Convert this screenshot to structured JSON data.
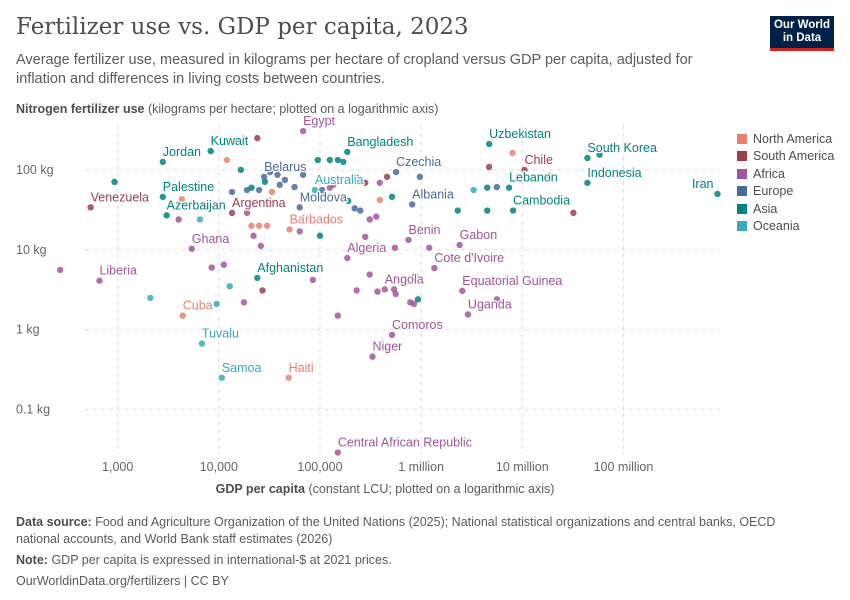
{
  "header": {
    "title": "Fertilizer use vs. GDP per capita, 2023",
    "subtitle": "Average fertilizer use, measured in kilograms per hectare of cropland versus GDP per capita, adjusted for inflation and differences in living costs between countries.",
    "logo": "Our World in Data"
  },
  "footer": {
    "source_label": "Data source:",
    "source": "Food and Agriculture Organization of the United Nations (2025); National statistical organizations and central banks, OECD national accounts, and World Bank staff estimates (2026)",
    "note_label": "Note:",
    "note": "GDP per capita is expressed in international-$ at 2021 prices.",
    "link": "OurWorldinData.org/fertilizers | CC BY"
  },
  "chart_data": {
    "type": "scatter",
    "title": "Fertilizer use vs. GDP per capita, 2023",
    "ylabel_bold": "Nitrogen fertilizer use",
    "ylabel_rest": " (kilograms per hectare; plotted on a logarithmic axis)",
    "xlabel_bold": "GDP per capita",
    "xlabel_rest": " (constant LCU; plotted on a logarithmic axis)",
    "xscale": "log",
    "yscale": "log",
    "xlim": [
      240,
      900000000
    ],
    "ylim": [
      0.027,
      365
    ],
    "grid": true,
    "legend": "right",
    "xticks": [
      {
        "v": 1000,
        "label": "1,000"
      },
      {
        "v": 10000,
        "label": "10,000"
      },
      {
        "v": 100000,
        "label": "100,000"
      },
      {
        "v": 1000000,
        "label": "1 million"
      },
      {
        "v": 10000000,
        "label": "10 million"
      },
      {
        "v": 100000000,
        "label": "100 million"
      }
    ],
    "yticks": [
      {
        "v": 100,
        "label": "100 kg"
      },
      {
        "v": 10,
        "label": "10 kg"
      },
      {
        "v": 1,
        "label": "1 kg"
      },
      {
        "v": 0.1,
        "label": "0.1 kg"
      }
    ],
    "regions": [
      {
        "name": "North America",
        "color": "#e8826f"
      },
      {
        "name": "South America",
        "color": "#9b3f4d"
      },
      {
        "name": "Africa",
        "color": "#a2559c"
      },
      {
        "name": "Europe",
        "color": "#4c6a9c"
      },
      {
        "name": "Asia",
        "color": "#00847e"
      },
      {
        "name": "Oceania",
        "color": "#38aaba"
      }
    ],
    "points": [
      {
        "label": "Kuwait",
        "x": 8300,
        "y": 172,
        "r": "Asia"
      },
      {
        "label": "Jordan",
        "x": 2790,
        "y": 126,
        "r": "Asia"
      },
      {
        "label": "Palestine",
        "x": 2790,
        "y": 46,
        "r": "Asia"
      },
      {
        "label": "Venezuela",
        "x": 540,
        "y": 34,
        "r": "South America"
      },
      {
        "label": "Azerbaijan",
        "x": 3050,
        "y": 27,
        "r": "Asia"
      },
      {
        "label": "Belarus",
        "x": 28000,
        "y": 82,
        "r": "Europe"
      },
      {
        "label": "Egypt",
        "x": 68000,
        "y": 306,
        "r": "Africa"
      },
      {
        "label": "Bangladesh",
        "x": 186000,
        "y": 168,
        "r": "Asia"
      },
      {
        "label": "Australia",
        "x": 89000,
        "y": 56,
        "r": "Oceania"
      },
      {
        "label": "Argentina",
        "x": 13500,
        "y": 29,
        "r": "South America"
      },
      {
        "label": "Moldova",
        "x": 63000,
        "y": 34,
        "r": "Europe"
      },
      {
        "label": "Barbados",
        "x": 50000,
        "y": 18,
        "r": "North America"
      },
      {
        "label": "Czechia",
        "x": 565000,
        "y": 94,
        "r": "Europe"
      },
      {
        "label": "Albania",
        "x": 815000,
        "y": 37,
        "r": "Europe"
      },
      {
        "label": "Uzbekistan",
        "x": 4700000,
        "y": 211,
        "r": "Asia"
      },
      {
        "label": "Chile",
        "x": 10500000,
        "y": 100,
        "r": "South America"
      },
      {
        "label": "South Korea",
        "x": 44000000,
        "y": 141,
        "r": "Asia"
      },
      {
        "label": "Indonesia",
        "x": 44000000,
        "y": 69,
        "r": "Asia"
      },
      {
        "label": "Iran",
        "x": 850000000,
        "y": 50,
        "r": "Asia"
      },
      {
        "label": "Lebanon",
        "x": 7400000,
        "y": 60,
        "r": "Asia"
      },
      {
        "label": "Cambodia",
        "x": 8100000,
        "y": 31,
        "r": "Asia"
      },
      {
        "label": "Benin",
        "x": 750000,
        "y": 13.3,
        "r": "Africa"
      },
      {
        "label": "Gabon",
        "x": 2400000,
        "y": 11.5,
        "r": "Africa"
      },
      {
        "label": "Algeria",
        "x": 186000,
        "y": 7.9,
        "r": "Africa"
      },
      {
        "label": "Cote d'Ivoire",
        "x": 1350000,
        "y": 5.9,
        "r": "Africa"
      },
      {
        "label": "Angola",
        "x": 437000,
        "y": 3.2,
        "r": "Africa"
      },
      {
        "label": "Equatorial Guinea",
        "x": 2550000,
        "y": 3.06,
        "r": "Africa"
      },
      {
        "label": "Uganda",
        "x": 2900000,
        "y": 1.55,
        "r": "Africa"
      },
      {
        "label": "Comoros",
        "x": 515000,
        "y": 0.86,
        "r": "Africa"
      },
      {
        "label": "Niger",
        "x": 330000,
        "y": 0.46,
        "r": "Africa"
      },
      {
        "label": "Central African Republic",
        "x": 150000,
        "y": 0.029,
        "r": "Africa"
      },
      {
        "label": "Haiti",
        "x": 49000,
        "y": 0.25,
        "r": "North America"
      },
      {
        "label": "Samoa",
        "x": 10700,
        "y": 0.25,
        "r": "Oceania"
      },
      {
        "label": "Tuvalu",
        "x": 6800,
        "y": 0.67,
        "r": "Oceania"
      },
      {
        "label": "Cuba",
        "x": 4400,
        "y": 1.5,
        "r": "North America"
      },
      {
        "label": "Liberia",
        "x": 660,
        "y": 4.1,
        "r": "Africa"
      },
      {
        "label": "Ghana",
        "x": 5400,
        "y": 10.3,
        "r": "Africa"
      },
      {
        "label": "Afghanistan",
        "x": 24000,
        "y": 4.45,
        "r": "Asia"
      },
      {
        "x": 270,
        "y": 5.6,
        "r": "Africa"
      },
      {
        "x": 930,
        "y": 71,
        "r": "Asia"
      },
      {
        "x": 2100,
        "y": 2.5,
        "r": "Oceania"
      },
      {
        "x": 4000,
        "y": 24,
        "r": "Africa"
      },
      {
        "x": 4300,
        "y": 43,
        "r": "North America"
      },
      {
        "x": 6500,
        "y": 24,
        "r": "Oceania"
      },
      {
        "x": 8500,
        "y": 6,
        "r": "Africa"
      },
      {
        "x": 11200,
        "y": 6.5,
        "r": "Africa"
      },
      {
        "x": 12800,
        "y": 3.5,
        "r": "Oceania"
      },
      {
        "x": 9500,
        "y": 2.1,
        "r": "Oceania"
      },
      {
        "x": 17700,
        "y": 2.2,
        "r": "Africa"
      },
      {
        "x": 27000,
        "y": 3.1,
        "r": "South America"
      },
      {
        "x": 26000,
        "y": 11.2,
        "r": "Africa"
      },
      {
        "x": 22000,
        "y": 15,
        "r": "Africa"
      },
      {
        "x": 19000,
        "y": 29,
        "r": "Africa"
      },
      {
        "x": 21000,
        "y": 20,
        "r": "North America"
      },
      {
        "x": 25000,
        "y": 20,
        "r": "North America"
      },
      {
        "x": 30000,
        "y": 20,
        "r": "North America"
      },
      {
        "x": 24000,
        "y": 250,
        "r": "South America"
      },
      {
        "x": 12000,
        "y": 133,
        "r": "North America"
      },
      {
        "x": 16500,
        "y": 100,
        "r": "Asia"
      },
      {
        "x": 21000,
        "y": 60,
        "r": "Asia"
      },
      {
        "x": 25000,
        "y": 56,
        "r": "Europe"
      },
      {
        "x": 13500,
        "y": 53,
        "r": "Europe"
      },
      {
        "x": 19000,
        "y": 56,
        "r": "Europe"
      },
      {
        "x": 33500,
        "y": 53,
        "r": "North America"
      },
      {
        "x": 28500,
        "y": 71,
        "r": "Asia"
      },
      {
        "x": 40000,
        "y": 65,
        "r": "Europe"
      },
      {
        "x": 45000,
        "y": 75,
        "r": "Europe"
      },
      {
        "x": 56000,
        "y": 61,
        "r": "Europe"
      },
      {
        "x": 38000,
        "y": 87,
        "r": "Europe"
      },
      {
        "x": 32000,
        "y": 94,
        "r": "Europe"
      },
      {
        "x": 68000,
        "y": 87,
        "r": "Europe"
      },
      {
        "x": 105000,
        "y": 56,
        "r": "Europe"
      },
      {
        "x": 125000,
        "y": 60,
        "r": "Africa"
      },
      {
        "x": 135000,
        "y": 65,
        "r": "Africa"
      },
      {
        "x": 190000,
        "y": 41,
        "r": "Asia"
      },
      {
        "x": 220000,
        "y": 33,
        "r": "Europe"
      },
      {
        "x": 63000,
        "y": 17,
        "r": "Africa"
      },
      {
        "x": 100000,
        "y": 15,
        "r": "Asia"
      },
      {
        "x": 68000,
        "y": 25,
        "r": "Africa"
      },
      {
        "x": 76000,
        "y": 25,
        "r": "Asia"
      },
      {
        "x": 95000,
        "y": 133,
        "r": "Asia"
      },
      {
        "x": 125000,
        "y": 133,
        "r": "Asia"
      },
      {
        "x": 150000,
        "y": 133,
        "r": "Asia"
      },
      {
        "x": 170000,
        "y": 126,
        "r": "Asia"
      },
      {
        "x": 230000,
        "y": 80,
        "r": "Europe"
      },
      {
        "x": 280000,
        "y": 69,
        "r": "South America"
      },
      {
        "x": 390000,
        "y": 69,
        "r": "Africa"
      },
      {
        "x": 390000,
        "y": 42,
        "r": "North America"
      },
      {
        "x": 515000,
        "y": 46,
        "r": "Asia"
      },
      {
        "x": 250000,
        "y": 31,
        "r": "Europe"
      },
      {
        "x": 310000,
        "y": 24,
        "r": "Africa"
      },
      {
        "x": 360000,
        "y": 26,
        "r": "Africa"
      },
      {
        "x": 280000,
        "y": 14.5,
        "r": "Africa"
      },
      {
        "x": 550000,
        "y": 10.6,
        "r": "Africa"
      },
      {
        "x": 620000,
        "y": 4,
        "r": "Africa"
      },
      {
        "x": 540000,
        "y": 3.2,
        "r": "Africa"
      },
      {
        "x": 780000,
        "y": 2.2,
        "r": "Africa"
      },
      {
        "x": 850000,
        "y": 2.1,
        "r": "Africa"
      },
      {
        "x": 930000,
        "y": 2.4,
        "r": "Asia"
      },
      {
        "x": 560000,
        "y": 2.8,
        "r": "Africa"
      },
      {
        "x": 1200000,
        "y": 10.6,
        "r": "Africa"
      },
      {
        "x": 870000,
        "y": 4.7,
        "r": "Africa"
      },
      {
        "x": 230000,
        "y": 3.1,
        "r": "Africa"
      },
      {
        "x": 310000,
        "y": 4.9,
        "r": "Africa"
      },
      {
        "x": 150000,
        "y": 1.5,
        "r": "Africa"
      },
      {
        "x": 85000,
        "y": 4.2,
        "r": "Africa"
      },
      {
        "x": 370000,
        "y": 3,
        "r": "Africa"
      },
      {
        "x": 5600000,
        "y": 2.4,
        "r": "Africa"
      },
      {
        "x": 3300000,
        "y": 56,
        "r": "Oceania"
      },
      {
        "x": 4500000,
        "y": 60,
        "r": "Asia"
      },
      {
        "x": 5600000,
        "y": 61,
        "r": "Europe"
      },
      {
        "x": 2300000,
        "y": 31,
        "r": "Asia"
      },
      {
        "x": 4500000,
        "y": 31,
        "r": "Asia"
      },
      {
        "x": 4700000,
        "y": 109,
        "r": "South America"
      },
      {
        "x": 8000000,
        "y": 163,
        "r": "North America"
      },
      {
        "x": 18600000,
        "y": 84,
        "r": "South America"
      },
      {
        "x": 32000000,
        "y": 29,
        "r": "South America"
      },
      {
        "x": 58000000,
        "y": 155,
        "r": "Asia"
      },
      {
        "x": 240000,
        "y": 211,
        "r": "Europe"
      },
      {
        "x": 970000,
        "y": 82,
        "r": "Europe"
      },
      {
        "x": 460000,
        "y": 82,
        "r": "South America"
      }
    ]
  }
}
